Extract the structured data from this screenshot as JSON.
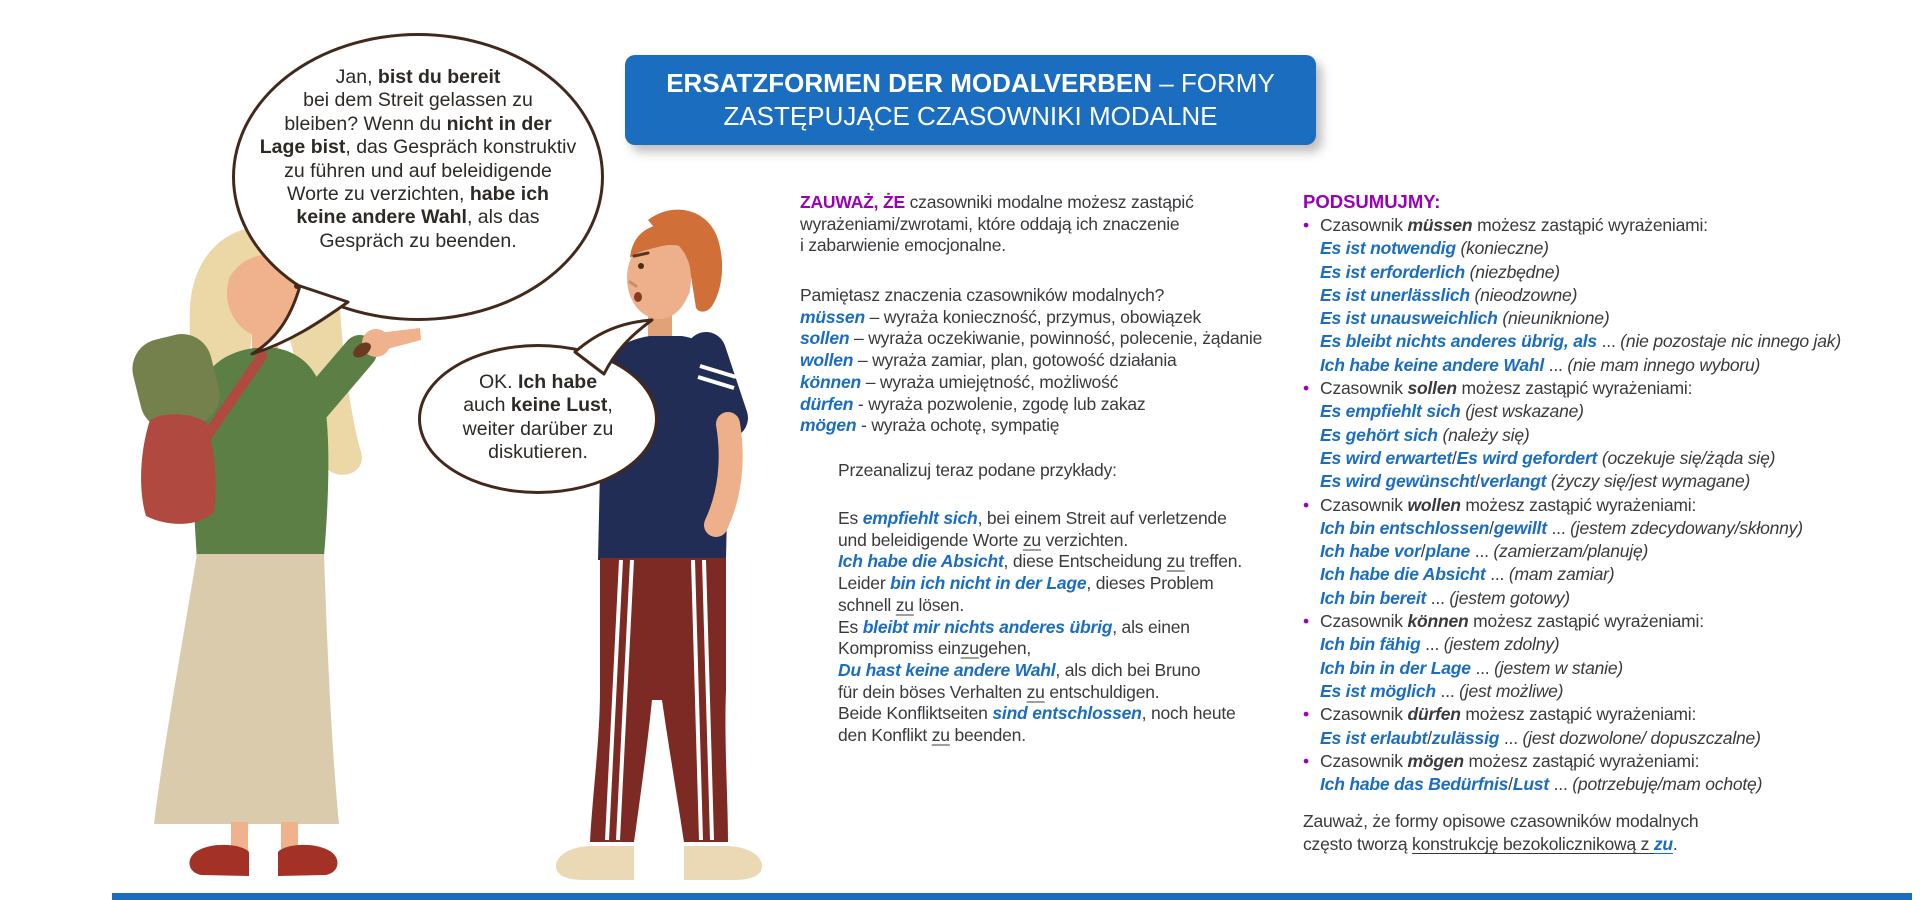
{
  "colors": {
    "accent_blue": "#1a6dbf",
    "accent_purple": "#9a00b8",
    "text_dark": "#3a393d",
    "bubble_outline": "#42291c",
    "shoe_red": "#a33126",
    "sweater_green": "#5b7f45",
    "shirt_navy": "#222d56",
    "pants_maroon": "#7c2a23"
  },
  "banner": {
    "lines": [
      [
        [
          "b",
          "ERSATZFORMEN DER MODALVERBEN"
        ],
        [
          "r",
          " – FORMY"
        ]
      ],
      [
        [
          "r",
          "ZASTĘPUJĄCE CZASOWNIKI MODALNE"
        ]
      ]
    ]
  },
  "bubble1": {
    "lines": [
      [
        [
          "r",
          "Jan, "
        ],
        [
          "b",
          "bist du bereit"
        ]
      ],
      [
        [
          "r",
          "bei dem Streit gelassen zu"
        ]
      ],
      [
        [
          "r",
          "bleiben? Wenn du "
        ],
        [
          "b",
          "nicht in der"
        ]
      ],
      [
        [
          "b",
          "Lage bist"
        ],
        [
          "r",
          ", das Gespräch konstruktiv"
        ]
      ],
      [
        [
          "r",
          "zu führen und auf beleidigende"
        ]
      ],
      [
        [
          "r",
          "Worte zu verzichten, "
        ],
        [
          "b",
          "habe ich"
        ]
      ],
      [
        [
          "b",
          "keine andere Wahl"
        ],
        [
          "r",
          ", als das"
        ]
      ],
      [
        [
          "r",
          "Gespräch zu beenden."
        ]
      ]
    ]
  },
  "bubble2": {
    "lines": [
      [
        [
          "r",
          "OK. "
        ],
        [
          "b",
          "Ich habe"
        ]
      ],
      [
        [
          "r",
          "auch "
        ],
        [
          "b",
          "keine Lust"
        ],
        [
          "r",
          ","
        ]
      ],
      [
        [
          "r",
          "weiter darüber zu"
        ]
      ],
      [
        [
          "r",
          "diskutieren."
        ]
      ]
    ]
  },
  "middle": {
    "intro": [
      [
        [
          "p",
          "ZAUWAŻ, ŻE"
        ],
        [
          "r",
          " czasowniki modalne możesz zastąpić"
        ]
      ],
      [
        [
          "r",
          "wyrażeniami/zwrotami, które oddają ich znaczenie"
        ]
      ],
      [
        [
          "r",
          "i zabarwienie emocjonalne."
        ]
      ]
    ],
    "question_and_verbs": [
      [
        [
          "r",
          "Pamiętasz znaczenia czasowników modalnych?"
        ]
      ],
      [
        [
          "bb",
          "müssen"
        ],
        [
          "r",
          " – wyraża konieczność, przymus, obowiązek"
        ]
      ],
      [
        [
          "bb",
          "sollen"
        ],
        [
          "r",
          " – wyraża oczekiwanie, powinność, polecenie, żądanie"
        ]
      ],
      [
        [
          "bb",
          "wollen"
        ],
        [
          "r",
          " – wyraża zamiar, plan, gotowość działania"
        ]
      ],
      [
        [
          "bb",
          "können"
        ],
        [
          "r",
          " – wyraża umiejętność, możliwość"
        ]
      ],
      [
        [
          "bb",
          "dürfen"
        ],
        [
          "r",
          " - wyraża pozwolenie, zgodę lub zakaz"
        ]
      ],
      [
        [
          "bb",
          "mögen"
        ],
        [
          "r",
          " - wyraża ochotę, sympatię"
        ]
      ]
    ],
    "prompt": [
      [
        [
          "r",
          "Przeanalizuj teraz podane przykłady:"
        ]
      ]
    ],
    "examples": [
      [
        [
          "r",
          "Es "
        ],
        [
          "bb",
          "empfiehlt sich"
        ],
        [
          "r",
          ", bei einem Streit auf verletzende"
        ]
      ],
      [
        [
          "r",
          "und beleidigende Worte "
        ],
        [
          "u",
          "zu"
        ],
        [
          "r",
          " verzichten."
        ]
      ],
      [
        [
          "bb",
          "Ich habe die Absicht"
        ],
        [
          "r",
          ", diese Entscheidung "
        ],
        [
          "u",
          "zu"
        ],
        [
          "r",
          " treffen."
        ]
      ],
      [
        [
          "r",
          "Leider "
        ],
        [
          "bb",
          "bin ich nicht in der Lage"
        ],
        [
          "r",
          ", dieses Problem"
        ]
      ],
      [
        [
          "r",
          "schnell "
        ],
        [
          "u",
          "zu"
        ],
        [
          "r",
          " lösen."
        ]
      ],
      [
        [
          "r",
          "Es "
        ],
        [
          "bb",
          "bleibt mir nichts anderes übrig"
        ],
        [
          "r",
          ", als einen"
        ]
      ],
      [
        [
          "r",
          "Kompromiss ein"
        ],
        [
          "u",
          "zu"
        ],
        [
          "r",
          "gehen,"
        ]
      ],
      [
        [
          "bb",
          "Du hast keine andere Wahl"
        ],
        [
          "r",
          ", als dich bei Bruno"
        ]
      ],
      [
        [
          "r",
          "für dein böses Verhalten "
        ],
        [
          "u",
          "zu"
        ],
        [
          "r",
          " entschuldigen."
        ]
      ],
      [
        [
          "r",
          "Beide Konfliktseiten "
        ],
        [
          "bb",
          "sind entschlossen"
        ],
        [
          "r",
          ", noch heute"
        ]
      ],
      [
        [
          "r",
          "den Konflikt "
        ],
        [
          "u",
          "zu"
        ],
        [
          "r",
          " beenden."
        ]
      ]
    ]
  },
  "right": {
    "heading": "PODSUMUJMY:",
    "items": [
      [
        [
          "dot",
          "•"
        ],
        [
          "r",
          "Czasownik "
        ],
        [
          "bd",
          "müssen"
        ],
        [
          "r",
          " możesz zastąpić wyrażeniami:"
        ]
      ],
      [
        [
          "bb",
          "Es ist notwendig"
        ],
        [
          "i",
          " (konieczne)"
        ]
      ],
      [
        [
          "bb",
          "Es ist erforderlich"
        ],
        [
          "i",
          " (niezbędne)"
        ]
      ],
      [
        [
          "bb",
          "Es ist unerlässlich"
        ],
        [
          "i",
          " (nieodzowne)"
        ]
      ],
      [
        [
          "bb",
          "Es ist unausweichlich"
        ],
        [
          "i",
          " (nieuniknione)"
        ]
      ],
      [
        [
          "bb",
          "Es bleibt nichts anderes übrig, als"
        ],
        [
          "r",
          " ... "
        ],
        [
          "i",
          "(nie pozostaje nic innego jak)"
        ]
      ],
      [
        [
          "bb",
          "Ich habe keine andere Wahl"
        ],
        [
          "r",
          " ... "
        ],
        [
          "i",
          "(nie mam innego wyboru)"
        ]
      ],
      [
        [
          "dot",
          "•"
        ],
        [
          "r",
          "Czasownik "
        ],
        [
          "bd",
          "sollen"
        ],
        [
          "r",
          " możesz zastąpić wyrażeniami:"
        ]
      ],
      [
        [
          "bb",
          "Es empfiehlt sich"
        ],
        [
          "i",
          " (jest wskazane)"
        ]
      ],
      [
        [
          "bb",
          "Es gehört sich"
        ],
        [
          "i",
          " (należy się)"
        ]
      ],
      [
        [
          "bb",
          "Es wird erwartet"
        ],
        [
          "r",
          "/"
        ],
        [
          "bb",
          "Es wird gefordert"
        ],
        [
          "i",
          " (oczekuje się/żąda się)"
        ]
      ],
      [
        [
          "bb",
          "Es wird gewünscht"
        ],
        [
          "r",
          "/"
        ],
        [
          "bb",
          "verlangt"
        ],
        [
          "i",
          " (życzy się/jest wymagane)"
        ]
      ],
      [
        [
          "dot",
          "•"
        ],
        [
          "r",
          "Czasownik "
        ],
        [
          "bd",
          "wollen"
        ],
        [
          "r",
          " możesz zastąpić wyrażeniami:"
        ]
      ],
      [
        [
          "bb",
          "Ich bin entschlossen"
        ],
        [
          "r",
          "/"
        ],
        [
          "bb",
          "gewillt"
        ],
        [
          "r",
          " ... "
        ],
        [
          "i",
          "(jestem zdecydowany/skłonny)"
        ]
      ],
      [
        [
          "bb",
          "Ich habe vor"
        ],
        [
          "r",
          "/"
        ],
        [
          "bb",
          "plane"
        ],
        [
          "r",
          " ... "
        ],
        [
          "i",
          "(zamierzam/planuję)"
        ]
      ],
      [
        [
          "bb",
          "Ich habe die Absicht"
        ],
        [
          "r",
          " ... "
        ],
        [
          "i",
          "(mam zamiar)"
        ]
      ],
      [
        [
          "bb",
          "Ich bin bereit"
        ],
        [
          "r",
          " ... "
        ],
        [
          "i",
          "(jestem gotowy)"
        ]
      ],
      [
        [
          "dot",
          "•"
        ],
        [
          "r",
          "Czasownik "
        ],
        [
          "bd",
          "können"
        ],
        [
          "r",
          " możesz zastąpić wyrażeniami:"
        ]
      ],
      [
        [
          "bb",
          "Ich bin fähig"
        ],
        [
          "r",
          " ... "
        ],
        [
          "i",
          "(jestem zdolny)"
        ]
      ],
      [
        [
          "bb",
          "Ich bin in der Lage"
        ],
        [
          "r",
          " ... "
        ],
        [
          "i",
          "(jestem w stanie)"
        ]
      ],
      [
        [
          "bb",
          "Es ist möglich"
        ],
        [
          "r",
          " ... "
        ],
        [
          "i",
          "(jest możliwe)"
        ]
      ],
      [
        [
          "dot",
          "•"
        ],
        [
          "r",
          "Czasownik "
        ],
        [
          "bd",
          "dürfen"
        ],
        [
          "r",
          " możesz zastąpić wyrażeniami:"
        ]
      ],
      [
        [
          "bb",
          "Es ist erlaubt"
        ],
        [
          "r",
          "/"
        ],
        [
          "bb",
          "zulässig"
        ],
        [
          "r",
          " ... "
        ],
        [
          "i",
          "(jest dozwolone/ dopuszczalne)"
        ]
      ],
      [
        [
          "dot",
          "•"
        ],
        [
          "r",
          "Czasownik "
        ],
        [
          "bd",
          "mögen"
        ],
        [
          "r",
          " możesz zastąpić wyrażeniami:"
        ]
      ],
      [
        [
          "bb",
          "Ich habe das Bedürfnis"
        ],
        [
          "r",
          "/"
        ],
        [
          "bb",
          "Lust"
        ],
        [
          "r",
          " ... "
        ],
        [
          "i",
          "(potrzebuję/mam ochotę)"
        ]
      ]
    ],
    "footer": [
      [
        [
          "r",
          "Zauważ, że formy opisowe czasowników modalnych"
        ]
      ],
      [
        [
          "r",
          "często tworzą "
        ],
        [
          "ru",
          "konstrukcję bezokolicznikową z "
        ],
        [
          "bu",
          "zu"
        ],
        [
          "r",
          "."
        ]
      ]
    ]
  },
  "characters": {
    "woman": "blonde woman in green sweater and beige skirt pointing at man",
    "man": "red-haired man in navy t-shirt and maroon track pants with hands behind back"
  }
}
